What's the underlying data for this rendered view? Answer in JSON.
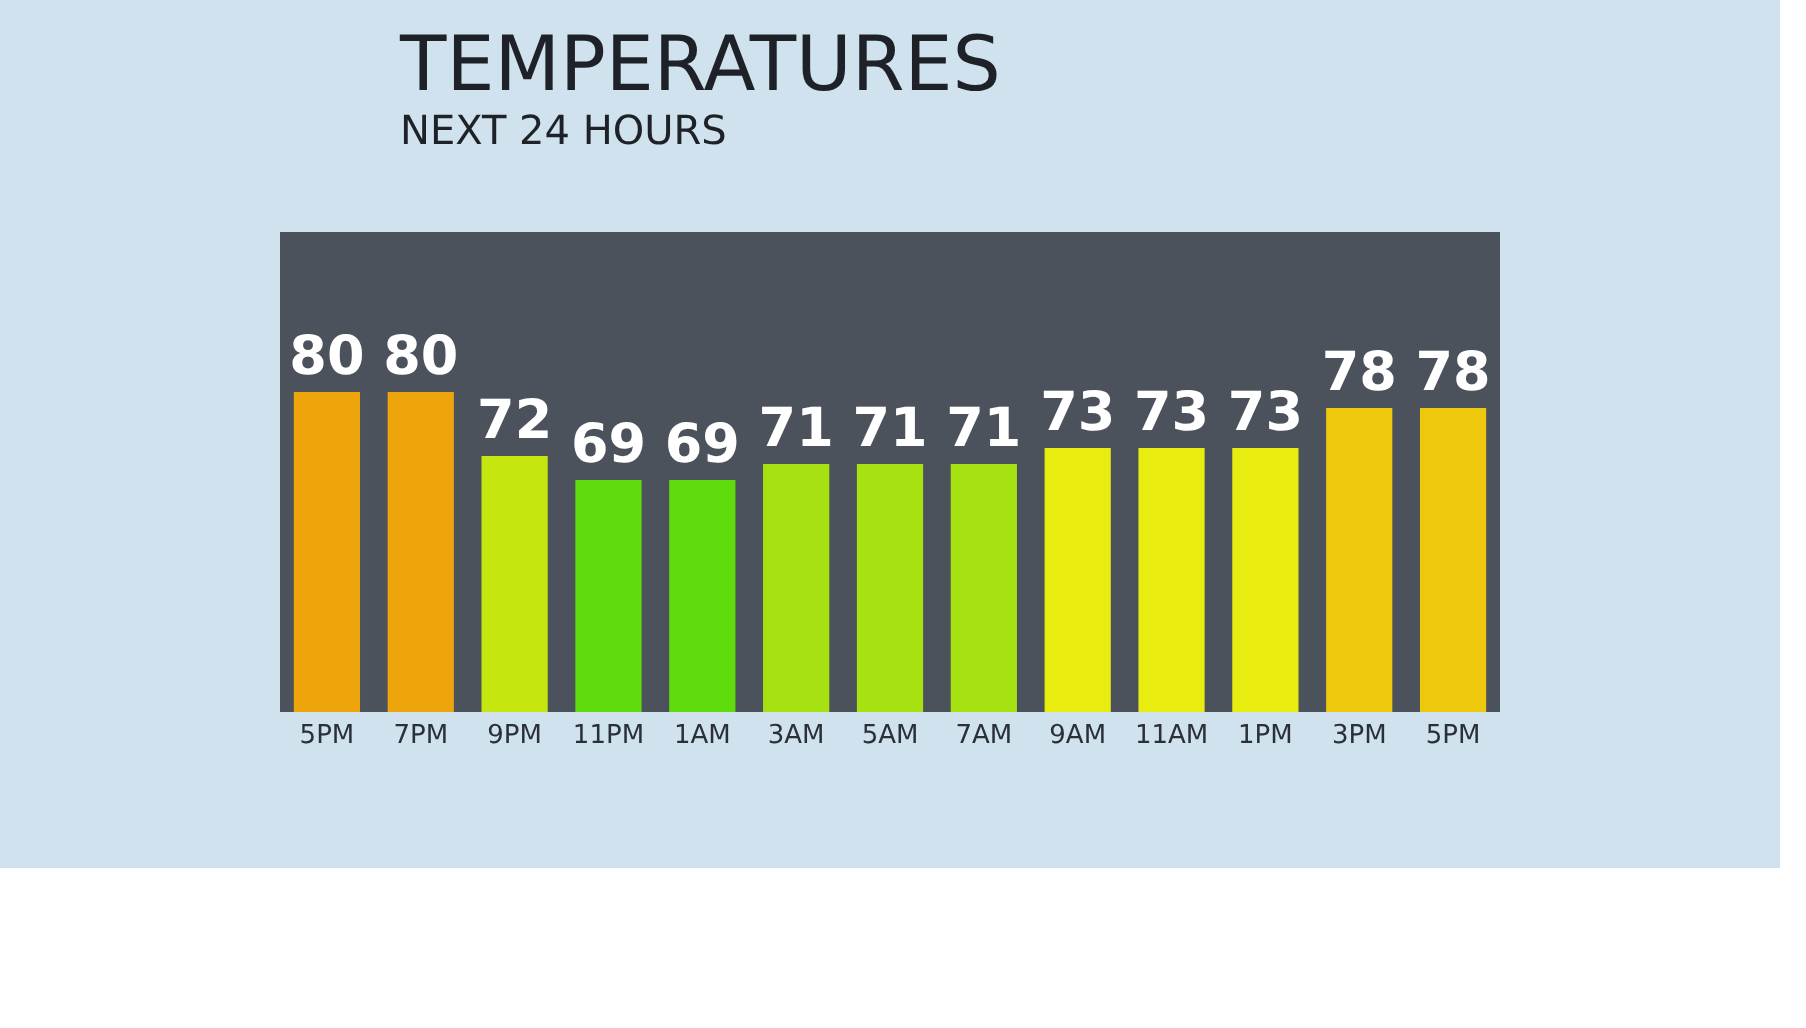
{
  "chart_data": {
    "type": "bar",
    "title": "TEMPERATURES",
    "subtitle": "NEXT 24 HOURS",
    "categories": [
      "5PM",
      "7PM",
      "9PM",
      "11PM",
      "1AM",
      "3AM",
      "5AM",
      "7AM",
      "9AM",
      "11AM",
      "1PM",
      "3PM",
      "5PM"
    ],
    "values": [
      80,
      80,
      72,
      69,
      69,
      71,
      71,
      71,
      73,
      73,
      73,
      78,
      78
    ],
    "colors": [
      "#eea50c",
      "#eea50c",
      "#c6e60f",
      "#5fdc0c",
      "#5fdc0c",
      "#a6e212",
      "#a6e212",
      "#a6e212",
      "#e8ec0f",
      "#e8ec0f",
      "#e8ec0f",
      "#edc80c",
      "#edc80c"
    ],
    "ylim": [
      40,
      100
    ],
    "data_labels": true,
    "grid": false,
    "tick_labels": "x"
  }
}
